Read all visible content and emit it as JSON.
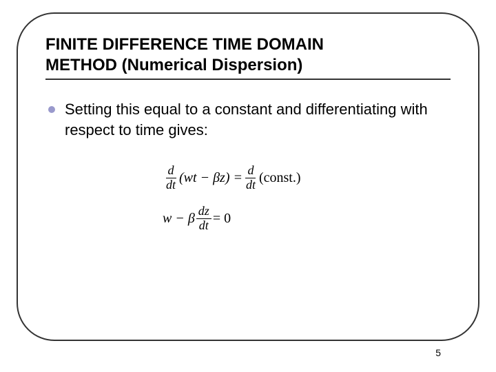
{
  "slide": {
    "title_line1": "FINITE DIFFERENCE TIME DOMAIN",
    "title_line2": "METHOD (Numerical Dispersion)",
    "bullet_text": "Setting this equal to a constant and differentiating with respect to time gives:",
    "page_number": "5"
  },
  "equation": {
    "frac_num": "d",
    "frac_den": "dt",
    "eq1_body": "(wt − βz) = ",
    "eq1_tail": "(const.)",
    "eq2_pre": "w − β ",
    "eq2_frac_num": "dz",
    "eq2_frac_den": "dt",
    "eq2_tail": " = 0"
  },
  "style": {
    "bullet_color": "#9999cc",
    "border_color": "#333333",
    "border_radius": 55,
    "title_fontsize": 24,
    "body_fontsize": 22,
    "eq_fontsize": 20,
    "page_fontsize": 14,
    "background": "#ffffff",
    "text_color": "#000000"
  }
}
